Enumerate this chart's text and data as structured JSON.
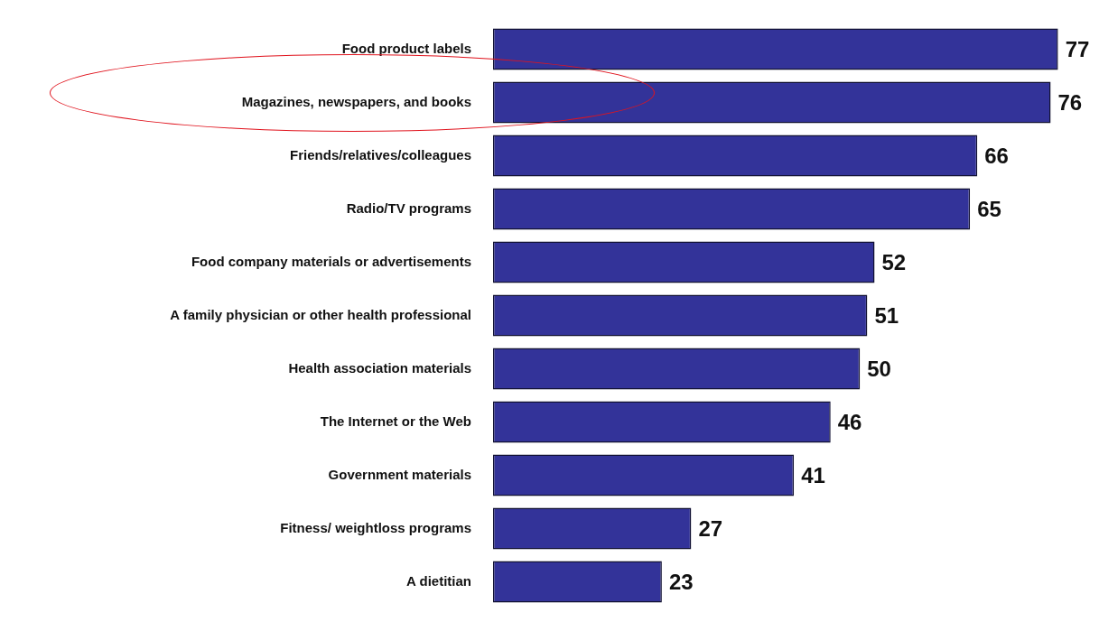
{
  "chart_data": {
    "type": "bar",
    "orientation": "horizontal",
    "categories": [
      "Food product labels",
      "Magazines, newspapers, and books",
      "Friends/relatives/colleagues",
      "Radio/TV programs",
      "Food company materials or advertisements",
      "A family physician or other health professional",
      "Health association materials",
      "The Internet or the Web",
      "Government materials",
      "Fitness/ weightloss programs",
      "A dietitian"
    ],
    "values": [
      77,
      76,
      66,
      65,
      52,
      51,
      50,
      46,
      41,
      27,
      23
    ],
    "color": "#333399",
    "data_labels": true,
    "legend": false,
    "tick_labels": "y"
  }
}
